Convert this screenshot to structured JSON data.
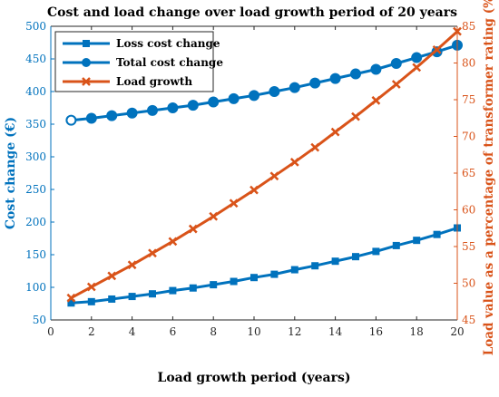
{
  "chart_data": {
    "type": "line",
    "title": "Cost and load change over load growth period of 20 years",
    "xlabel": "Load growth period (years)",
    "ylabel_left": "Cost change (€)",
    "ylabel_right": "Load value as a percentage of transformer rating (%)",
    "xlim": [
      0,
      20
    ],
    "ylim_left": [
      50,
      500
    ],
    "ylim_right": [
      45,
      85
    ],
    "x_ticks": [
      0,
      2,
      4,
      6,
      8,
      10,
      12,
      14,
      16,
      18,
      20
    ],
    "y_ticks_left": [
      50,
      100,
      150,
      200,
      250,
      300,
      350,
      400,
      450,
      500
    ],
    "y_ticks_right": [
      45,
      50,
      55,
      60,
      65,
      70,
      75,
      80,
      85
    ],
    "grid": false,
    "legend_position": "top-left",
    "x": [
      1,
      2,
      3,
      4,
      5,
      6,
      7,
      8,
      9,
      10,
      11,
      12,
      13,
      14,
      15,
      16,
      17,
      18,
      19,
      20
    ],
    "series": [
      {
        "name": "Loss cost change",
        "axis": "left",
        "marker": "square",
        "color": "#0072BD",
        "values": [
          76,
          78,
          82,
          86,
          90,
          95,
          99,
          104,
          109,
          115,
          120,
          127,
          133,
          140,
          147,
          155,
          164,
          172,
          181,
          191
        ]
      },
      {
        "name": "Total cost change",
        "axis": "left",
        "marker": "circle",
        "color": "#0072BD",
        "values": [
          356,
          359,
          363,
          367,
          371,
          375,
          379,
          384,
          389,
          394,
          400,
          406,
          413,
          420,
          427,
          434,
          443,
          452,
          461,
          471
        ]
      },
      {
        "name": "Load growth",
        "axis": "right",
        "marker": "x",
        "color": "#D95319",
        "values": [
          48.0,
          49.5,
          51.0,
          52.5,
          54.1,
          55.7,
          57.4,
          59.1,
          60.9,
          62.7,
          64.6,
          66.5,
          68.5,
          70.6,
          72.7,
          74.9,
          77.1,
          79.4,
          81.8,
          84.3
        ]
      }
    ]
  },
  "colors": {
    "left_axis": "#0072BD",
    "right_axis": "#D95319",
    "axes": "#262626"
  }
}
